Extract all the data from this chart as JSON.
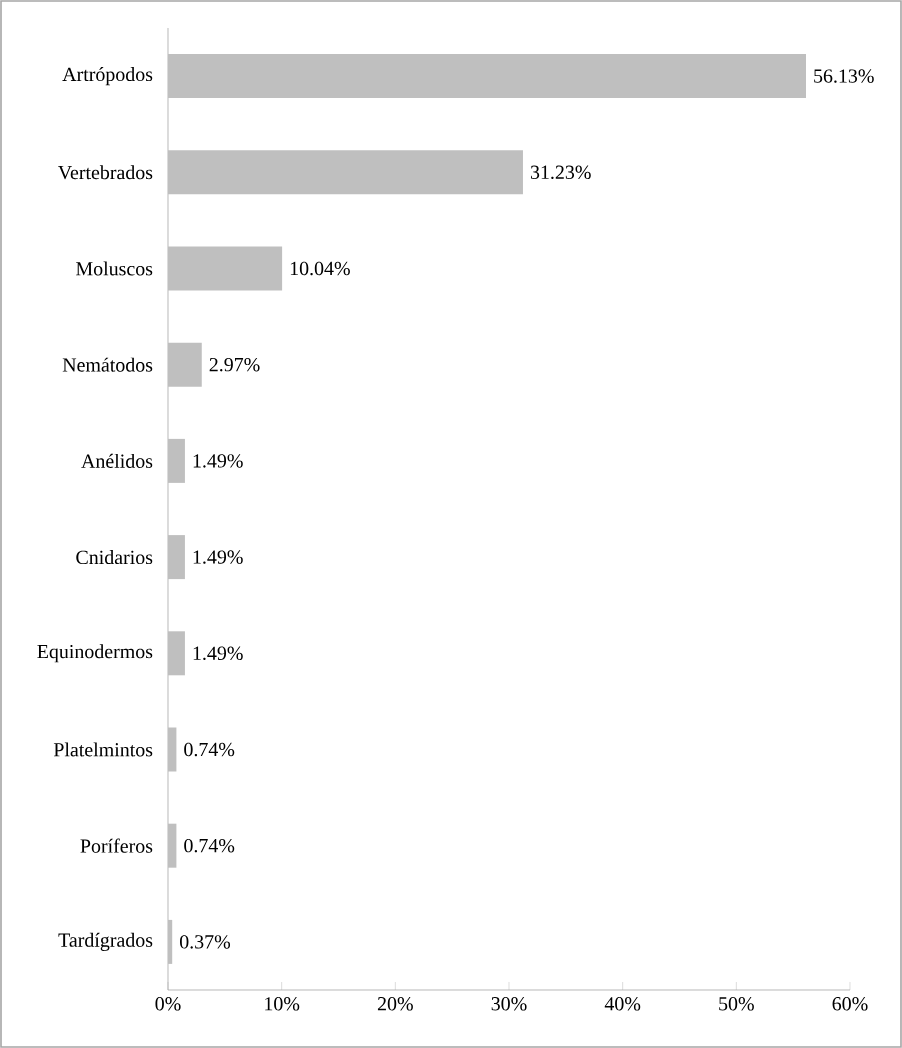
{
  "chart_data": {
    "type": "bar",
    "orientation": "horizontal",
    "categories": [
      "Artrópodos",
      "Vertebrados",
      "Moluscos",
      "Nemátodos",
      "Anélidos",
      "Cnidarios",
      "Equinodermos",
      "Platelmintos",
      "Poríferos",
      "Tardígrados"
    ],
    "values": [
      56.13,
      31.23,
      10.04,
      2.97,
      1.49,
      1.49,
      1.49,
      0.74,
      0.74,
      0.37
    ],
    "value_labels": [
      "56.13%",
      "31.23%",
      "10.04%",
      "2.97%",
      "1.49%",
      "1.49%",
      "1.49%",
      "0.74%",
      "0.74%",
      "0.37%"
    ],
    "color": "#bfbfbf",
    "xlim": [
      0,
      60
    ],
    "xticks": [
      {
        "value": 0,
        "label": "0%"
      },
      {
        "value": 10,
        "label": "10%"
      },
      {
        "value": 20,
        "label": "20%"
      },
      {
        "value": 30,
        "label": "30%"
      },
      {
        "value": 40,
        "label": "40%"
      },
      {
        "value": 50,
        "label": "50%"
      },
      {
        "value": 60,
        "label": "60%"
      }
    ],
    "grid": false
  }
}
